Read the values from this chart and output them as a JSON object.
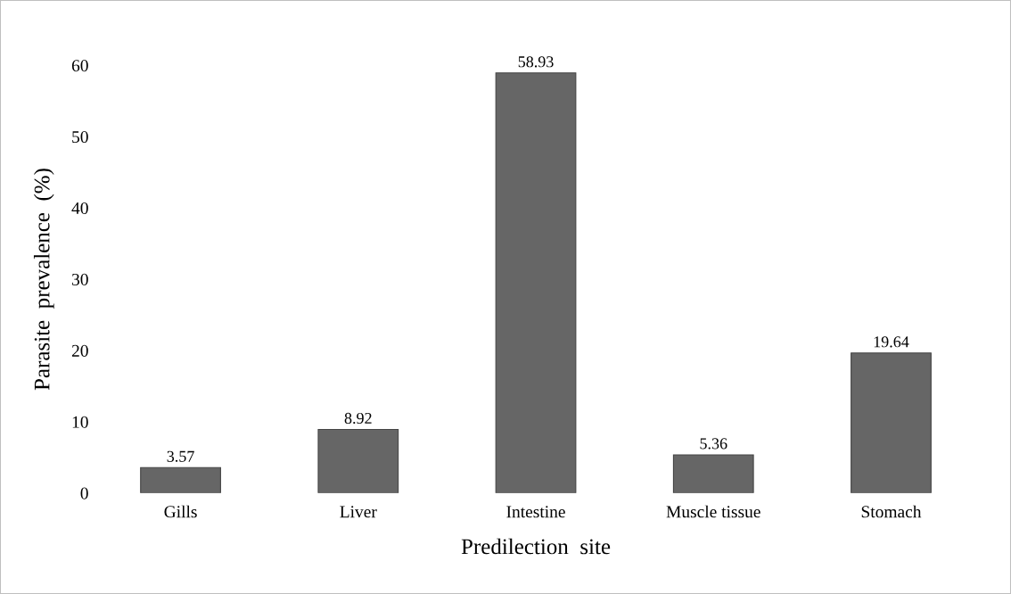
{
  "chart_data": {
    "type": "bar",
    "categories": [
      "Gills",
      "Liver",
      "Intestine",
      "Muscle tissue",
      "Stomach"
    ],
    "values": [
      3.57,
      8.92,
      58.93,
      5.36,
      19.64
    ],
    "color": "#666666",
    "xlabel": "Predilection  site",
    "ylabel": "Parasite  prevalence  (%)",
    "ylim": [
      0,
      60
    ],
    "yticks": [
      0,
      10,
      20,
      30,
      40,
      50,
      60
    ],
    "data_labels": true,
    "grid": false,
    "legend": false
  }
}
